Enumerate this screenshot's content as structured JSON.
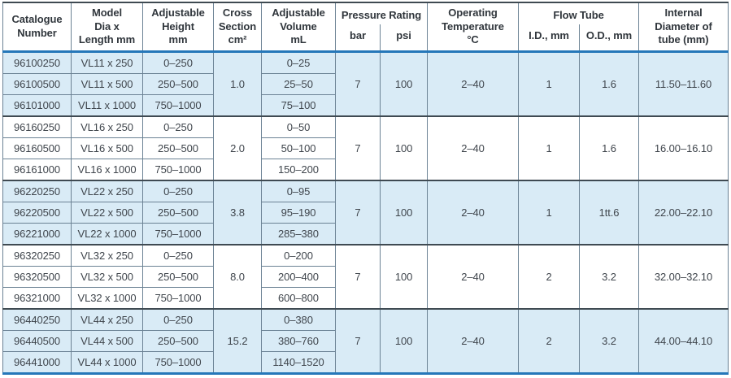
{
  "colors": {
    "accent_rule_blue": "#2577b9",
    "shaded_row_fill": "#d9ebf6",
    "grid_line": "#6b8294",
    "group_separator": "#3f4a52",
    "text": "#3f454c"
  },
  "table": {
    "header": {
      "catalogue": "Catalogue\nNumber",
      "model": "Model\nDia x\nLength mm",
      "height": "Adjustable\nHeight\nmm",
      "cross_section": "Cross\nSection\ncm²",
      "volume": "Adjustable\nVolume\nmL",
      "pressure_rating": "Pressure Rating",
      "pressure_bar": "bar",
      "pressure_psi": "psi",
      "operating_temp": "Operating\nTemperature\n°C",
      "flow_tube": "Flow Tube",
      "flow_id": "I.D., mm",
      "flow_od": "O.D., mm",
      "internal_diameter": "Internal\nDiameter of\ntube (mm)"
    },
    "groups": [
      {
        "shaded": true,
        "cross_section": "1.0",
        "pressure_bar": "7",
        "pressure_psi": "100",
        "operating_temp": "2–40",
        "flow_id": "1",
        "flow_od": "1.6",
        "internal_diameter": "11.50–11.60",
        "rows": [
          {
            "catalogue": "96100250",
            "model": "VL11 x 250",
            "height": "0–250",
            "volume": "0–25"
          },
          {
            "catalogue": "96100500",
            "model": "VL11 x 500",
            "height": "250–500",
            "volume": "25–50"
          },
          {
            "catalogue": "96101000",
            "model": "VL11 x 1000",
            "height": "750–1000",
            "volume": "75–100"
          }
        ]
      },
      {
        "shaded": false,
        "cross_section": "2.0",
        "pressure_bar": "7",
        "pressure_psi": "100",
        "operating_temp": "2–40",
        "flow_id": "1",
        "flow_od": "1.6",
        "internal_diameter": "16.00–16.10",
        "rows": [
          {
            "catalogue": "96160250",
            "model": "VL16 x 250",
            "height": "0–250",
            "volume": "0–50"
          },
          {
            "catalogue": "96160500",
            "model": "VL16 x 500",
            "height": "250–500",
            "volume": "50–100"
          },
          {
            "catalogue": "96161000",
            "model": "VL16 x 1000",
            "height": "750–1000",
            "volume": "150–200"
          }
        ]
      },
      {
        "shaded": true,
        "cross_section": "3.8",
        "pressure_bar": "7",
        "pressure_psi": "100",
        "operating_temp": "2–40",
        "flow_id": "1",
        "flow_od": "1tt.6",
        "internal_diameter": "22.00–22.10",
        "rows": [
          {
            "catalogue": "96220250",
            "model": "VL22 x 250",
            "height": "0–250",
            "volume": "0–95"
          },
          {
            "catalogue": "96220500",
            "model": "VL22 x 500",
            "height": "250–500",
            "volume": "95–190"
          },
          {
            "catalogue": "96221000",
            "model": "VL22 x 1000",
            "height": "750–1000",
            "volume": "285–380"
          }
        ]
      },
      {
        "shaded": false,
        "cross_section": "8.0",
        "pressure_bar": "7",
        "pressure_psi": "100",
        "operating_temp": "2–40",
        "flow_id": "2",
        "flow_od": "3.2",
        "internal_diameter": "32.00–32.10",
        "rows": [
          {
            "catalogue": "96320250",
            "model": "VL32 x 250",
            "height": "0–250",
            "volume": "0–200"
          },
          {
            "catalogue": "96320500",
            "model": "VL32 x 500",
            "height": "250–500",
            "volume": "200–400"
          },
          {
            "catalogue": "96321000",
            "model": "VL32 x 1000",
            "height": "750–1000",
            "volume": "600–800"
          }
        ]
      },
      {
        "shaded": true,
        "cross_section": "15.2",
        "pressure_bar": "7",
        "pressure_psi": "100",
        "operating_temp": "2–40",
        "flow_id": "2",
        "flow_od": "3.2",
        "internal_diameter": "44.00–44.10",
        "rows": [
          {
            "catalogue": "96440250",
            "model": "VL44 x 250",
            "height": "0–250",
            "volume": "0–380"
          },
          {
            "catalogue": "96440500",
            "model": "VL44 x 500",
            "height": "250–500",
            "volume": "380–760"
          },
          {
            "catalogue": "96441000",
            "model": "VL44 x 1000",
            "height": "750–1000",
            "volume": "1140–1520"
          }
        ]
      }
    ]
  }
}
